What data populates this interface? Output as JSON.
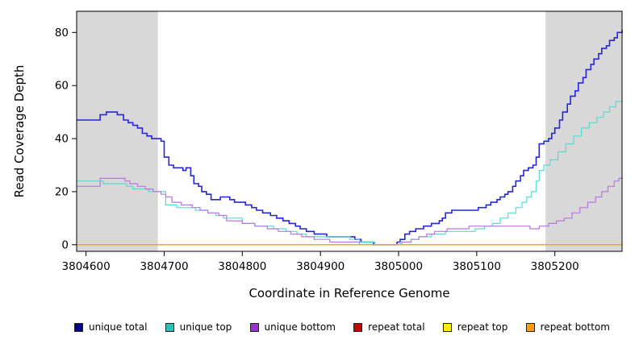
{
  "chart_data": {
    "type": "line",
    "subtype": "step",
    "title": "",
    "xlabel": "Coordinate in Reference Genome",
    "ylabel": "Read Coverage Depth",
    "xlim": [
      3804588,
      3805286
    ],
    "ylim": [
      -2.5,
      88
    ],
    "x_ticks": [
      3804600,
      3804700,
      3804800,
      3804900,
      3805000,
      3805100,
      3805200
    ],
    "y_ticks": [
      0,
      20,
      40,
      60,
      80
    ],
    "grid": "off",
    "legend_position": "bottom",
    "shade_color": "#d8d8d8",
    "shaded_regions": [
      {
        "x0": 3804588,
        "x1": 3804692
      },
      {
        "x0": 3805188,
        "x1": 3805286
      }
    ],
    "series": [
      {
        "name": "unique total",
        "color": "#2626d8",
        "legend_color": "#00008b",
        "width": 1.6,
        "points": [
          [
            3804588,
            47
          ],
          [
            3804612,
            47
          ],
          [
            3804618,
            49
          ],
          [
            3804626,
            50
          ],
          [
            3804640,
            49
          ],
          [
            3804648,
            47
          ],
          [
            3804654,
            46
          ],
          [
            3804660,
            45
          ],
          [
            3804666,
            44
          ],
          [
            3804672,
            42
          ],
          [
            3804678,
            41
          ],
          [
            3804684,
            40
          ],
          [
            3804696,
            39
          ],
          [
            3804700,
            33
          ],
          [
            3804706,
            30
          ],
          [
            3804712,
            29
          ],
          [
            3804724,
            28
          ],
          [
            3804728,
            29
          ],
          [
            3804734,
            26
          ],
          [
            3804738,
            23
          ],
          [
            3804744,
            22
          ],
          [
            3804748,
            20
          ],
          [
            3804754,
            19
          ],
          [
            3804760,
            17
          ],
          [
            3804772,
            18
          ],
          [
            3804784,
            17
          ],
          [
            3804790,
            16
          ],
          [
            3804804,
            15
          ],
          [
            3804812,
            14
          ],
          [
            3804818,
            13
          ],
          [
            3804826,
            12
          ],
          [
            3804836,
            11
          ],
          [
            3804844,
            10
          ],
          [
            3804852,
            9
          ],
          [
            3804860,
            8
          ],
          [
            3804868,
            7
          ],
          [
            3804874,
            6
          ],
          [
            3804882,
            5
          ],
          [
            3804892,
            4
          ],
          [
            3804908,
            3
          ],
          [
            3804944,
            2
          ],
          [
            3804952,
            1
          ],
          [
            3804968,
            0
          ],
          [
            3804998,
            1
          ],
          [
            3805002,
            2
          ],
          [
            3805008,
            4
          ],
          [
            3805014,
            5
          ],
          [
            3805022,
            6
          ],
          [
            3805032,
            7
          ],
          [
            3805042,
            8
          ],
          [
            3805052,
            9
          ],
          [
            3805056,
            10
          ],
          [
            3805060,
            12
          ],
          [
            3805068,
            13
          ],
          [
            3805102,
            14
          ],
          [
            3805112,
            15
          ],
          [
            3805118,
            16
          ],
          [
            3805126,
            17
          ],
          [
            3805130,
            18
          ],
          [
            3805136,
            19
          ],
          [
            3805140,
            20
          ],
          [
            3805146,
            22
          ],
          [
            3805150,
            24
          ],
          [
            3805156,
            26
          ],
          [
            3805160,
            28
          ],
          [
            3805166,
            29
          ],
          [
            3805172,
            30
          ],
          [
            3805176,
            33
          ],
          [
            3805180,
            38
          ],
          [
            3805186,
            39
          ],
          [
            3805192,
            40
          ],
          [
            3805196,
            42
          ],
          [
            3805200,
            44
          ],
          [
            3805206,
            47
          ],
          [
            3805210,
            50
          ],
          [
            3805216,
            53
          ],
          [
            3805220,
            56
          ],
          [
            3805226,
            58
          ],
          [
            3805230,
            61
          ],
          [
            3805236,
            63
          ],
          [
            3805240,
            66
          ],
          [
            3805246,
            68
          ],
          [
            3805250,
            70
          ],
          [
            3805256,
            72
          ],
          [
            3805260,
            74
          ],
          [
            3805266,
            75
          ],
          [
            3805270,
            77
          ],
          [
            3805276,
            78
          ],
          [
            3805280,
            80
          ],
          [
            3805286,
            81
          ]
        ]
      },
      {
        "name": "unique top",
        "color": "#55dcd4",
        "legend_color": "#2fbfb7",
        "width": 1.2,
        "points": [
          [
            3804588,
            24
          ],
          [
            3804616,
            24
          ],
          [
            3804622,
            23
          ],
          [
            3804652,
            22
          ],
          [
            3804660,
            21
          ],
          [
            3804680,
            20
          ],
          [
            3804698,
            20
          ],
          [
            3804702,
            15
          ],
          [
            3804716,
            14
          ],
          [
            3804740,
            13
          ],
          [
            3804756,
            12
          ],
          [
            3804766,
            11
          ],
          [
            3804776,
            10
          ],
          [
            3804800,
            8
          ],
          [
            3804816,
            7
          ],
          [
            3804840,
            6
          ],
          [
            3804856,
            5
          ],
          [
            3804870,
            4
          ],
          [
            3804882,
            3
          ],
          [
            3804938,
            2
          ],
          [
            3804950,
            1
          ],
          [
            3804970,
            0
          ],
          [
            3805002,
            1
          ],
          [
            3805016,
            2
          ],
          [
            3805026,
            3
          ],
          [
            3805042,
            4
          ],
          [
            3805060,
            5
          ],
          [
            3805098,
            6
          ],
          [
            3805110,
            7
          ],
          [
            3805120,
            8
          ],
          [
            3805130,
            10
          ],
          [
            3805140,
            12
          ],
          [
            3805150,
            14
          ],
          [
            3805158,
            16
          ],
          [
            3805164,
            18
          ],
          [
            3805170,
            20
          ],
          [
            3805176,
            24
          ],
          [
            3805180,
            28
          ],
          [
            3805186,
            30
          ],
          [
            3805194,
            32
          ],
          [
            3805204,
            35
          ],
          [
            3805214,
            38
          ],
          [
            3805224,
            41
          ],
          [
            3805234,
            44
          ],
          [
            3805244,
            46
          ],
          [
            3805254,
            48
          ],
          [
            3805262,
            50
          ],
          [
            3805270,
            52
          ],
          [
            3805278,
            54
          ],
          [
            3805286,
            55
          ]
        ]
      },
      {
        "name": "unique bottom",
        "color": "#b678e0",
        "legend_color": "#9933cc",
        "width": 1.2,
        "points": [
          [
            3804588,
            22
          ],
          [
            3804612,
            22
          ],
          [
            3804618,
            25
          ],
          [
            3804642,
            25
          ],
          [
            3804650,
            24
          ],
          [
            3804656,
            23
          ],
          [
            3804666,
            22
          ],
          [
            3804676,
            21
          ],
          [
            3804686,
            20
          ],
          [
            3804696,
            19
          ],
          [
            3804702,
            18
          ],
          [
            3804710,
            16
          ],
          [
            3804722,
            15
          ],
          [
            3804736,
            14
          ],
          [
            3804746,
            13
          ],
          [
            3804756,
            12
          ],
          [
            3804770,
            11
          ],
          [
            3804780,
            9
          ],
          [
            3804800,
            8
          ],
          [
            3804816,
            7
          ],
          [
            3804832,
            6
          ],
          [
            3804846,
            5
          ],
          [
            3804862,
            4
          ],
          [
            3804876,
            3
          ],
          [
            3804892,
            2
          ],
          [
            3804912,
            1
          ],
          [
            3804950,
            0
          ],
          [
            3805004,
            1
          ],
          [
            3805016,
            2
          ],
          [
            3805026,
            3
          ],
          [
            3805036,
            4
          ],
          [
            3805046,
            5
          ],
          [
            3805062,
            6
          ],
          [
            3805090,
            7
          ],
          [
            3805168,
            6
          ],
          [
            3805180,
            7
          ],
          [
            3805192,
            8
          ],
          [
            3805202,
            9
          ],
          [
            3805212,
            10
          ],
          [
            3805222,
            12
          ],
          [
            3805232,
            14
          ],
          [
            3805242,
            16
          ],
          [
            3805252,
            18
          ],
          [
            3805260,
            20
          ],
          [
            3805268,
            22
          ],
          [
            3805276,
            24
          ],
          [
            3805282,
            25
          ],
          [
            3805286,
            26
          ]
        ]
      },
      {
        "name": "repeat total",
        "color": "#cc2222",
        "legend_color": "#cc0000",
        "width": 1.2,
        "points": [
          [
            3804588,
            0
          ],
          [
            3805286,
            0
          ]
        ]
      },
      {
        "name": "repeat top",
        "color": "#ffff00",
        "legend_color": "#ffef00",
        "width": 1.2,
        "points": [
          [
            3804588,
            0
          ],
          [
            3805286,
            0
          ]
        ]
      },
      {
        "name": "repeat bottom",
        "color": "#ff9d00",
        "legend_color": "#ff9d00",
        "width": 1.2,
        "points": [
          [
            3804588,
            0
          ],
          [
            3805286,
            0
          ]
        ]
      }
    ]
  }
}
